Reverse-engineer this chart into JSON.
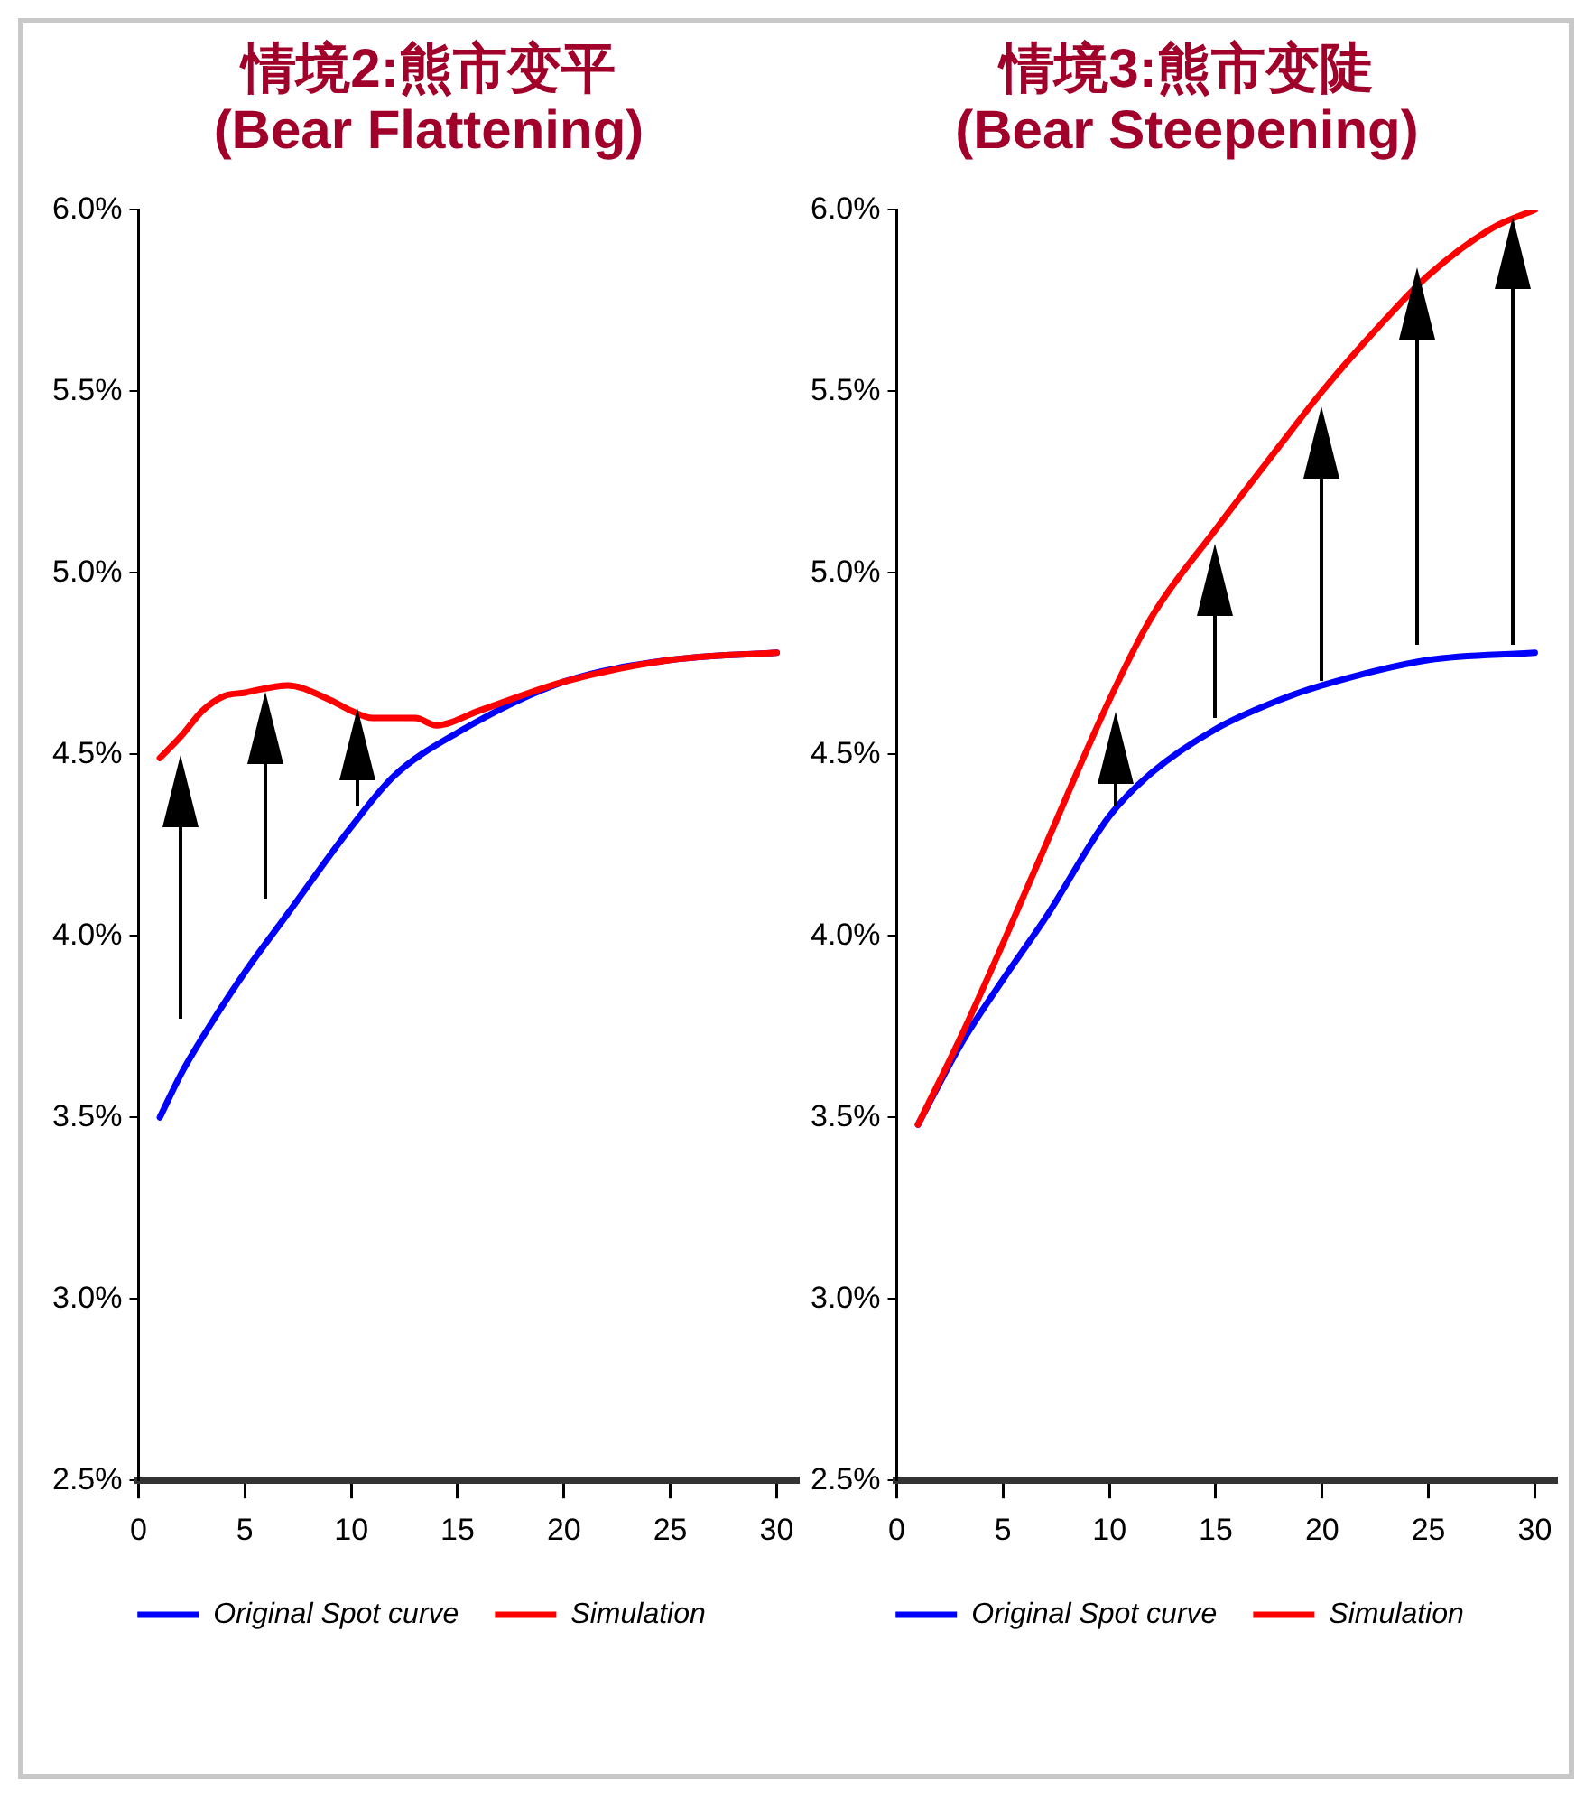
{
  "chart_data": [
    {
      "type": "line",
      "title": "情境2:熊市变平",
      "subtitle": "(Bear Flattening)",
      "xlim": [
        0,
        31
      ],
      "xticks": [
        0,
        5,
        10,
        15,
        20,
        25,
        30
      ],
      "ylim": [
        2.5,
        6.0
      ],
      "yticks": [
        {
          "value": 2.5,
          "label": "2.5%"
        },
        {
          "value": 3.0,
          "label": "3.0%"
        },
        {
          "value": 3.5,
          "label": "3.5%"
        },
        {
          "value": 4.0,
          "label": "4.0%"
        },
        {
          "value": 4.5,
          "label": "4.5%"
        },
        {
          "value": 5.0,
          "label": "5.0%"
        },
        {
          "value": 5.5,
          "label": "5.5%"
        },
        {
          "value": 6.0,
          "label": "6.0%"
        }
      ],
      "grid": false,
      "legend": "bottom",
      "marker": "none",
      "line_style": "solid",
      "series": [
        {
          "name": "Original Spot curve",
          "color": "#0000ff",
          "x": [
            1,
            2,
            3,
            5,
            7,
            10,
            12,
            15,
            20,
            25,
            30
          ],
          "values": [
            3.5,
            3.62,
            3.72,
            3.9,
            4.06,
            4.3,
            4.44,
            4.56,
            4.7,
            4.76,
            4.78
          ]
        },
        {
          "name": "Simulation",
          "color": "#ff0000",
          "x": [
            1,
            2,
            3,
            4,
            5,
            7,
            9,
            10,
            11,
            13,
            14,
            16,
            20,
            25,
            30
          ],
          "values": [
            4.49,
            4.55,
            4.62,
            4.66,
            4.67,
            4.69,
            4.65,
            4.62,
            4.6,
            4.6,
            4.58,
            4.62,
            4.7,
            4.76,
            4.78
          ]
        }
      ]
    },
    {
      "type": "line",
      "title": "情境3:熊市变陡",
      "subtitle": "(Bear Steepening)",
      "xlim": [
        0,
        31
      ],
      "xticks": [
        0,
        5,
        10,
        15,
        20,
        25,
        30
      ],
      "ylim": [
        2.5,
        6.0
      ],
      "yticks": [
        {
          "value": 2.5,
          "label": "2.5%"
        },
        {
          "value": 3.0,
          "label": "3.0%"
        },
        {
          "value": 3.5,
          "label": "3.5%"
        },
        {
          "value": 4.0,
          "label": "4.0%"
        },
        {
          "value": 4.5,
          "label": "4.5%"
        },
        {
          "value": 5.0,
          "label": "5.0%"
        },
        {
          "value": 5.5,
          "label": "5.5%"
        },
        {
          "value": 6.0,
          "label": "6.0%"
        }
      ],
      "grid": false,
      "legend": "bottom",
      "marker": "none",
      "line_style": "solid",
      "series": [
        {
          "name": "Original Spot curve",
          "color": "#0000ff",
          "x": [
            1,
            3,
            5,
            7,
            10,
            12,
            15,
            18,
            20,
            25,
            30
          ],
          "values": [
            3.48,
            3.7,
            3.88,
            4.05,
            4.33,
            4.45,
            4.57,
            4.65,
            4.69,
            4.76,
            4.78
          ]
        },
        {
          "name": "Simulation",
          "color": "#ff0000",
          "x": [
            1,
            3,
            5,
            7,
            10,
            12,
            15,
            18,
            20,
            23,
            25,
            28,
            30
          ],
          "values": [
            3.48,
            3.72,
            3.98,
            4.25,
            4.65,
            4.88,
            5.12,
            5.35,
            5.5,
            5.7,
            5.82,
            5.95,
            6.0
          ]
        }
      ]
    }
  ]
}
